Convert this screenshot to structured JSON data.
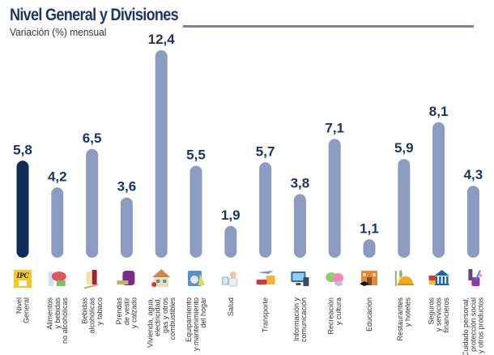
{
  "header": {
    "title": "Nivel General y Divisiones",
    "subtitle": "Variación (%) mensual"
  },
  "colors": {
    "title": "#1d3868",
    "highlight_bar": "#0f2c5a",
    "bar": "#8b9bc1",
    "value_text": "#17365f",
    "rule": "#7383a6"
  },
  "chart_data": {
    "type": "bar",
    "title": "Nivel General y Divisiones",
    "subtitle": "Variación (%) mensual",
    "xlabel": "",
    "ylabel": "Variación (%) mensual",
    "ylim": [
      0,
      12.4
    ],
    "grid": false,
    "categories": [
      "Nivel General",
      "Alimentos y bebidas no alcohólicas",
      "Bebidas alcohólicas y tabaco",
      "Prendas de vestir y calzado",
      "Vivienda, agua, electricidad, gas y otros combustibles",
      "Equipamiento y mantenimiento del hogar",
      "Salud",
      "Transporte",
      "Información y comunicación",
      "Recreación y cultura",
      "Educación",
      "Restaurantes y hoteles",
      "Seguros y servicios financieros",
      "Cuidado personal, protección social y otros productos"
    ],
    "label_lines": [
      [
        "Nivel",
        "General"
      ],
      [
        "Alimentos",
        "y bebidas",
        "no alcohólicas"
      ],
      [
        "Bebidas",
        "alcohólicas",
        "y tabaco"
      ],
      [
        "Prendas",
        "de vestir",
        "y calzado"
      ],
      [
        "Vivienda, agua,",
        "electricidad,",
        "gas y otros",
        "combustibles"
      ],
      [
        "Equipamiento",
        "y mantenimiento",
        "del hogar"
      ],
      [
        "Salud"
      ],
      [
        "Transporte"
      ],
      [
        "Información y",
        "comunicación"
      ],
      [
        "Recreación",
        "y cultura"
      ],
      [
        "Educación"
      ],
      [
        "Restaurantes",
        "y hoteles"
      ],
      [
        "Seguros",
        "y servicios",
        "financieros"
      ],
      [
        "Cuidado personal,",
        "protección social",
        "y otros productos"
      ]
    ],
    "values": [
      5.8,
      4.2,
      6.5,
      3.6,
      12.4,
      5.5,
      1.9,
      5.7,
      3.8,
      7.1,
      1.1,
      5.9,
      8.1,
      4.3
    ],
    "value_labels": [
      "5,8",
      "4,2",
      "6,5",
      "3,6",
      "12,4",
      "5,5",
      "1,9",
      "5,7",
      "3,8",
      "7,1",
      "1,1",
      "5,9",
      "8,1",
      "4,3"
    ],
    "icons": [
      "ipc-ba-logo-icon",
      "food-groceries-icon",
      "bottles-cigarette-icon",
      "sweater-shoe-icon",
      "house-utilities-icon",
      "washing-machine-icon",
      "doctor-icon",
      "car-plane-bus-icon",
      "computer-phone-icon",
      "theater-masks-icon",
      "school-building-icon",
      "cloche-cutlery-icon",
      "bank-cards-icon",
      "personal-care-icon"
    ],
    "highlight_index": 0,
    "logo_text": "IPC BA"
  }
}
